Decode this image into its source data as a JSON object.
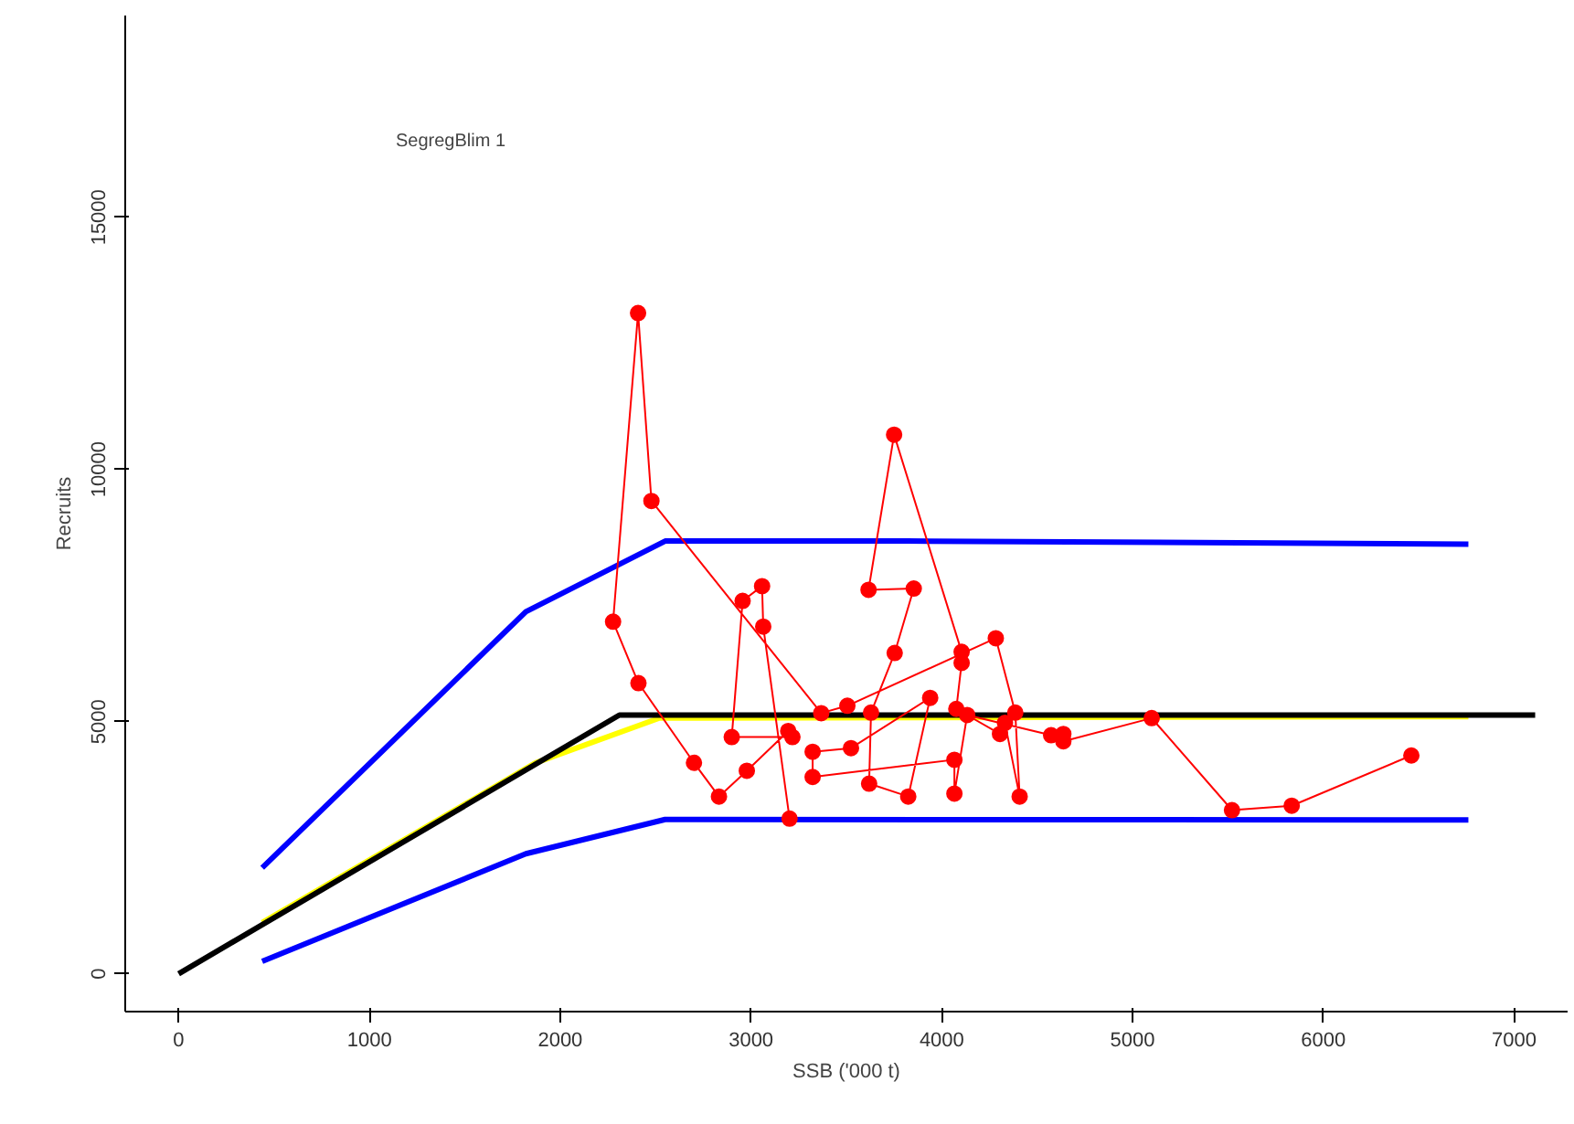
{
  "chart_data": {
    "type": "line",
    "xlabel": "SSB ('000 t)",
    "ylabel": "Recruits",
    "annotations": [
      "SegregBlim 1"
    ],
    "xlim": [
      -280,
      7280
    ],
    "ylim": [
      -750,
      19000
    ],
    "xticks": [
      0,
      1000,
      2000,
      3000,
      4000,
      5000,
      6000,
      7000
    ],
    "yticks": [
      0,
      5000,
      10000,
      15000
    ],
    "grid": false,
    "series": [
      {
        "color": "#0000ff",
        "x": [
          438,
          1820,
          2550,
          3820,
          6760
        ],
        "values": [
          2100,
          7180,
          8580,
          8580,
          8520
        ],
        "marker": "none"
      },
      {
        "color": "#0000ff",
        "x": [
          438,
          1820,
          2550,
          6760
        ],
        "values": [
          245,
          2380,
          3060,
          3050
        ],
        "marker": "none"
      },
      {
        "color": "#ffff00",
        "x": [
          438,
          1870,
          2520,
          6760
        ],
        "values": [
          1015,
          4180,
          5070,
          5100
        ],
        "marker": "none"
      },
      {
        "color": "#000000",
        "x": [
          0,
          2310,
          7110
        ],
        "values": [
          0,
          5130,
          5130
        ],
        "marker": "none"
      },
      {
        "color": "#ff0000",
        "marker": "circle",
        "x": [
          3202,
          3064,
          3058,
          2956,
          2899,
          3217,
          3195,
          2978,
          2832,
          2701,
          2410,
          2277,
          2408,
          2478,
          3368,
          3505,
          4283,
          4385,
          4408,
          4331,
          4305,
          4076,
          4104,
          4104,
          3750,
          3616,
          3853,
          3753,
          3629,
          3619,
          3824,
          3939,
          3524,
          3323,
          3323,
          4066,
          4066,
          4133,
          4573,
          4637,
          4637,
          5100,
          5521,
          5834,
          6461
        ],
        "values": [
          3077,
          6883,
          7686,
          7394,
          4693,
          4693,
          4814,
          4025,
          3514,
          4183,
          5763,
          6982,
          13100,
          9376,
          5168,
          5314,
          6653,
          5179,
          3514,
          4974,
          4755,
          5252,
          6164,
          6383,
          10690,
          7613,
          7638,
          6361,
          5179,
          3770,
          3514,
          5471,
          4474,
          4401,
          3902,
          4244,
          3573,
          5131,
          4730,
          4755,
          4609,
          5069,
          3245,
          3332,
          4328
        ]
      }
    ]
  }
}
